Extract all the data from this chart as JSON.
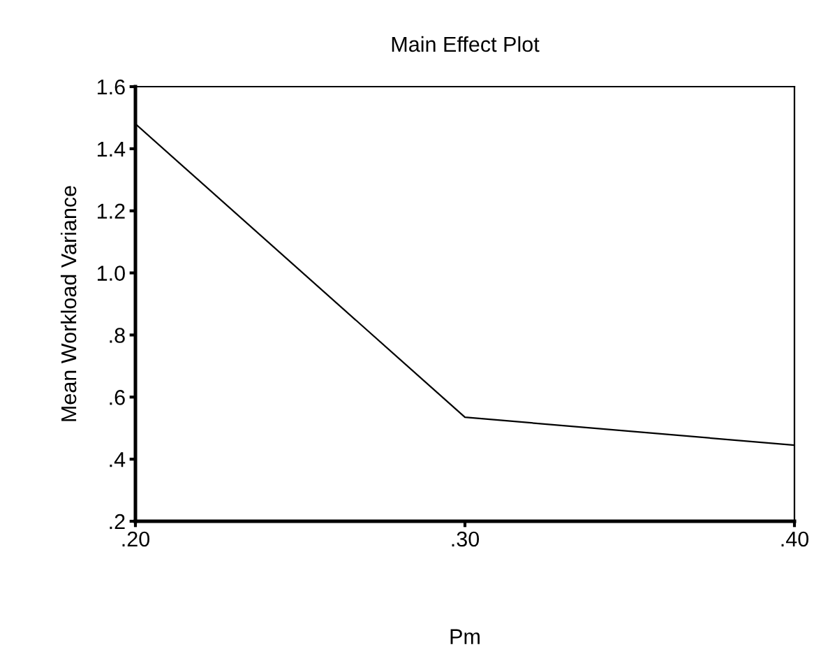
{
  "chart_data": {
    "type": "line",
    "title": "Main Effect Plot",
    "xlabel": "Pm",
    "ylabel": "Mean Workload Variance",
    "x": [
      0.2,
      0.3,
      0.4
    ],
    "series": [
      {
        "color": "#000000",
        "values": [
          1.48,
          0.535,
          0.445
        ]
      }
    ],
    "xlim": [
      0.2,
      0.4
    ],
    "xticks": [
      {
        "value": 0.2,
        "label": ".20"
      },
      {
        "value": 0.3,
        "label": ".30"
      },
      {
        "value": 0.4,
        "label": ".40"
      }
    ],
    "ylim": [
      0.2,
      1.6
    ],
    "yticks": [
      {
        "value": 0.2,
        "label": ".2"
      },
      {
        "value": 0.4,
        "label": ".4"
      },
      {
        "value": 0.6,
        "label": ".6"
      },
      {
        "value": 0.8,
        "label": ".8"
      },
      {
        "value": 1.0,
        "label": "1.0"
      },
      {
        "value": 1.2,
        "label": "1.2"
      },
      {
        "value": 1.4,
        "label": "1.4"
      },
      {
        "value": 1.6,
        "label": "1.6"
      }
    ],
    "grid": false,
    "legend": false,
    "marker": "none",
    "line_style": "solid"
  }
}
